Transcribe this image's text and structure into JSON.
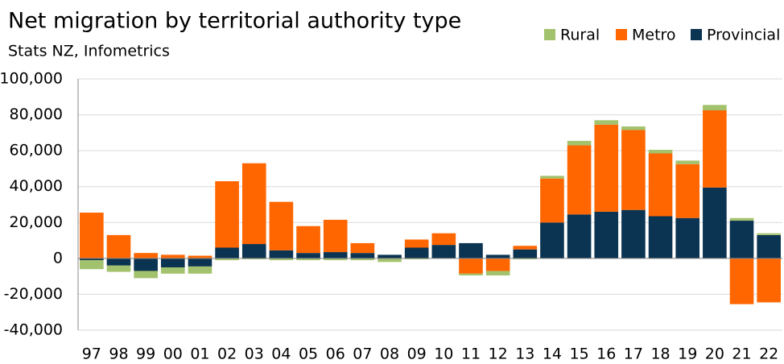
{
  "chart_data": {
    "type": "stacked_bar",
    "title": "Net migration by territorial authority type",
    "subtitle": "Stats NZ, Infometrics",
    "categories": [
      "97",
      "98",
      "99",
      "00",
      "01",
      "02",
      "03",
      "04",
      "05",
      "06",
      "07",
      "08",
      "09",
      "10",
      "11",
      "12",
      "13",
      "14",
      "15",
      "16",
      "17",
      "18",
      "19",
      "20",
      "21",
      "22"
    ],
    "series": [
      {
        "name": "Provincial",
        "color": "#0b3352",
        "values": [
          -1000,
          -4000,
          -7000,
          -5000,
          -4500,
          6000,
          8000,
          4500,
          3000,
          3500,
          3000,
          2000,
          6000,
          7500,
          8500,
          2000,
          5000,
          20000,
          24500,
          26000,
          27000,
          23500,
          22500,
          39500,
          21000,
          13000
        ]
      },
      {
        "name": "Metro",
        "color": "#ff6600",
        "values": [
          25500,
          13000,
          3000,
          2000,
          1500,
          37000,
          45000,
          27000,
          15000,
          18000,
          5500,
          0,
          4500,
          6500,
          -8500,
          -7000,
          2000,
          24500,
          38500,
          48500,
          44500,
          35000,
          30000,
          43000,
          -25500,
          -24500
        ]
      },
      {
        "name": "Rural",
        "color": "#a3c26d",
        "values": [
          -5000,
          -3500,
          -4000,
          -3500,
          -4000,
          -1000,
          -500,
          -1000,
          -1000,
          -1000,
          -1000,
          -2000,
          -500,
          0,
          -1000,
          -2500,
          -500,
          1500,
          2500,
          2500,
          2000,
          2000,
          2000,
          3000,
          1500,
          1000
        ]
      }
    ],
    "legend_order": [
      "Rural",
      "Metro",
      "Provincial"
    ],
    "ylim": [
      -40000,
      100000
    ],
    "yticks": [
      {
        "value": -40000,
        "label": "-40,000"
      },
      {
        "value": -20000,
        "label": "-20,000"
      },
      0,
      {
        "value": 20000,
        "label": "20,000"
      },
      {
        "value": 40000,
        "label": "40,000"
      },
      {
        "value": 60000,
        "label": "60,000"
      },
      {
        "value": 80000,
        "label": "80,000"
      },
      {
        "value": 100000,
        "label": "100,000"
      }
    ],
    "grid": true
  }
}
